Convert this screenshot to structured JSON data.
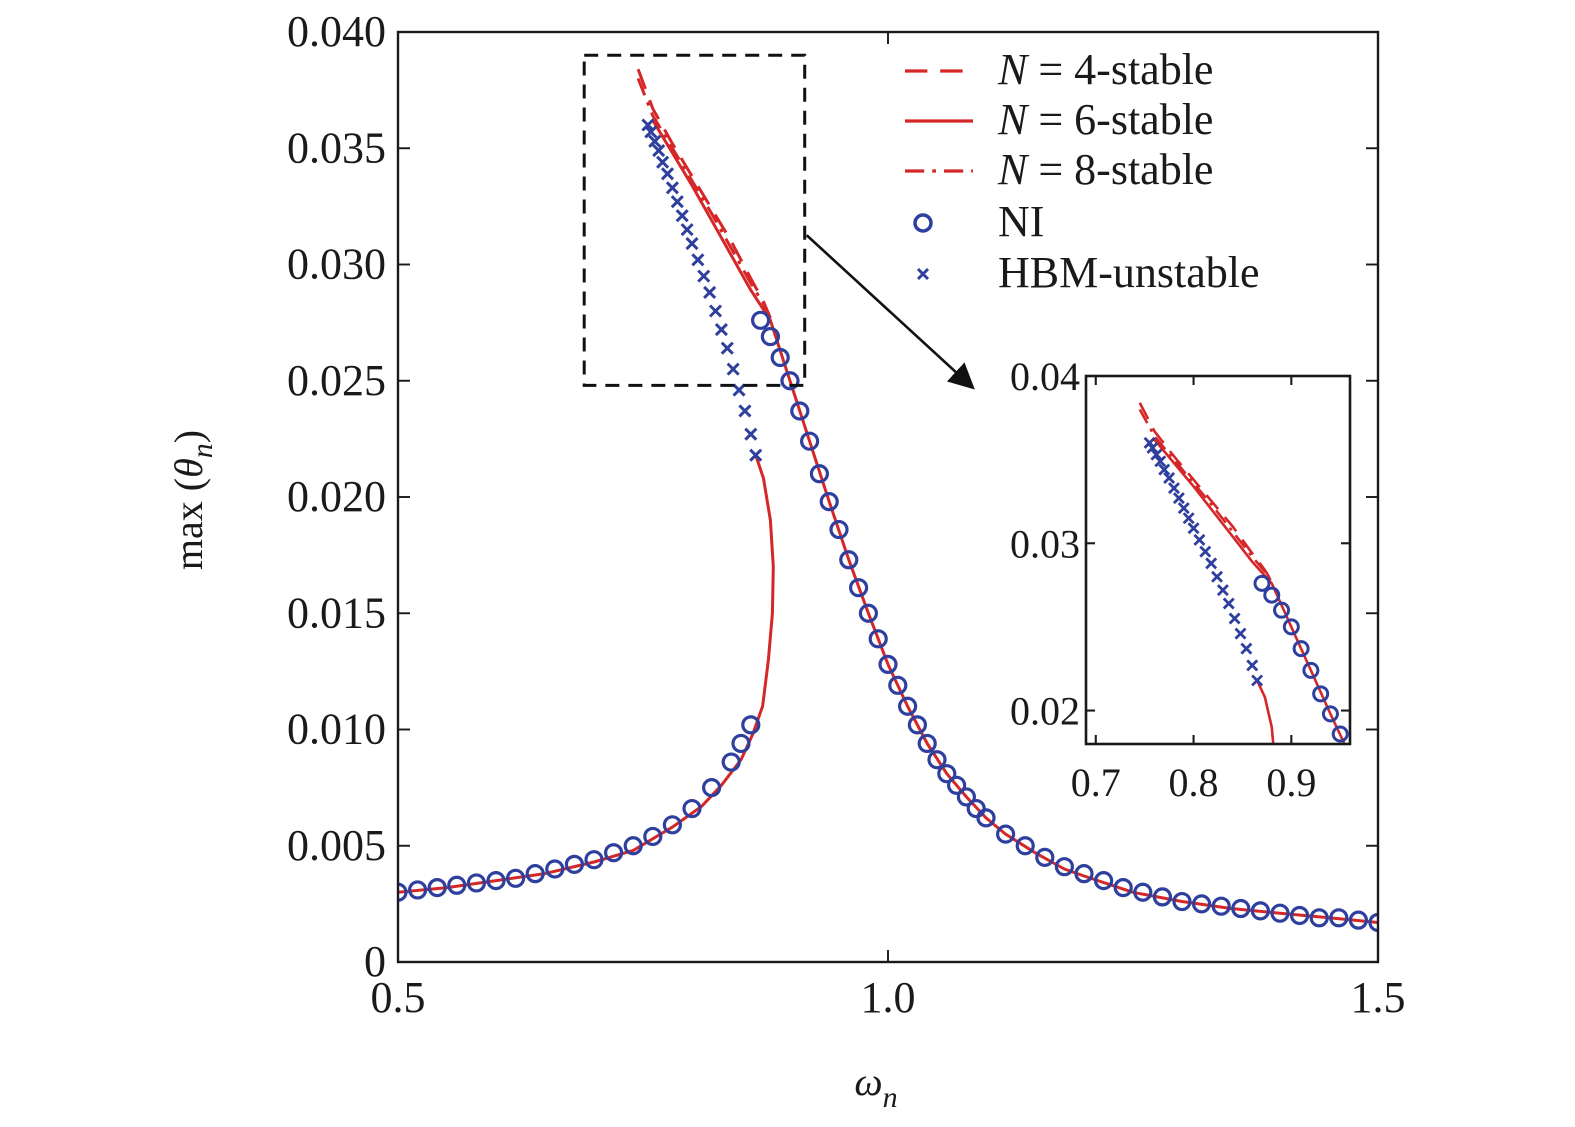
{
  "chart_data": [
    {
      "type": "line",
      "xlabel": "ω",
      "xlabel_sub": "n",
      "ylabel_prefix": "max (",
      "ylabel_symbol": "θ",
      "ylabel_sub": "n",
      "ylabel_suffix": ")",
      "xlim": [
        0.5,
        1.5
      ],
      "ylim": [
        0,
        0.04
      ],
      "x_ticks": [
        0.5,
        1.0,
        1.5
      ],
      "x_tick_labels": [
        "0.5",
        "1.0",
        "1.5"
      ],
      "y_ticks": [
        0,
        0.005,
        0.01,
        0.015,
        0.02,
        0.025,
        0.03,
        0.035,
        0.04
      ],
      "y_tick_labels": [
        "0",
        "0.005",
        "0.010",
        "0.015",
        "0.020",
        "0.025",
        "0.030",
        "0.035",
        "0.040"
      ],
      "grid": false,
      "legend_position": "top-right",
      "legend": [
        {
          "label": "= 4-stable",
          "italic_prefix": "N",
          "style": "dashed",
          "color": "#d62728"
        },
        {
          "label": "= 6-stable",
          "italic_prefix": "N",
          "style": "solid",
          "color": "#d62728"
        },
        {
          "label": "= 8-stable",
          "italic_prefix": "N",
          "style": "dashdot",
          "color": "#d62728"
        },
        {
          "label": "NI",
          "italic_prefix": "",
          "style": "circle",
          "color": "#2e3f9e"
        },
        {
          "label": "HBM-unstable",
          "italic_prefix": "",
          "style": "cross",
          "color": "#2e3f9e"
        }
      ],
      "series": [
        {
          "name": "N = 4-stable",
          "style": "dashed",
          "color": "#d62728",
          "x": [
            0.745,
            0.76,
            0.78,
            0.8,
            0.82,
            0.84,
            0.86,
            0.873,
            0.88
          ],
          "y": [
            0.0384,
            0.0367,
            0.0352,
            0.0338,
            0.0324,
            0.031,
            0.0294,
            0.0284,
            0.0277
          ]
        },
        {
          "name": "N = 6-stable upper",
          "style": "solid",
          "color": "#d62728",
          "x": [
            0.76,
            0.78,
            0.8,
            0.82,
            0.84,
            0.86,
            0.88,
            0.9,
            0.92,
            0.94,
            0.96,
            0.98,
            1.0,
            1.02,
            1.04,
            1.06,
            1.08,
            1.1,
            1.12,
            1.15,
            1.18,
            1.2,
            1.25,
            1.3,
            1.35,
            1.4,
            1.45,
            1.5
          ],
          "y": [
            0.0362,
            0.0348,
            0.0334,
            0.0319,
            0.0304,
            0.0289,
            0.0276,
            0.025,
            0.0224,
            0.0198,
            0.0173,
            0.015,
            0.0128,
            0.011,
            0.0094,
            0.0081,
            0.0071,
            0.0062,
            0.0055,
            0.0047,
            0.004,
            0.0037,
            0.003,
            0.0026,
            0.0023,
            0.0021,
            0.0019,
            0.0017
          ]
        },
        {
          "name": "N = 6-stable lower",
          "style": "solid",
          "color": "#d62728",
          "x": [
            0.5,
            0.55,
            0.6,
            0.65,
            0.7,
            0.74,
            0.78,
            0.81,
            0.83,
            0.85,
            0.862,
            0.872,
            0.878,
            0.882,
            0.883,
            0.88,
            0.873,
            0.865
          ],
          "y": [
            0.003,
            0.0032,
            0.0035,
            0.0038,
            0.0043,
            0.0048,
            0.0058,
            0.0067,
            0.0076,
            0.0087,
            0.0098,
            0.011,
            0.013,
            0.015,
            0.017,
            0.019,
            0.0208,
            0.0218
          ]
        },
        {
          "name": "N = 8-stable",
          "style": "dashdot",
          "color": "#d62728",
          "x": [
            0.745,
            0.76,
            0.78,
            0.8,
            0.82,
            0.84,
            0.86,
            0.873,
            0.88
          ],
          "y": [
            0.038,
            0.0364,
            0.035,
            0.0336,
            0.0322,
            0.0307,
            0.0292,
            0.0283,
            0.0277
          ]
        },
        {
          "name": "NI",
          "style": "circle",
          "color": "#2e3f9e",
          "x": [
            0.5,
            0.52,
            0.54,
            0.56,
            0.58,
            0.6,
            0.62,
            0.64,
            0.66,
            0.68,
            0.7,
            0.72,
            0.74,
            0.76,
            0.78,
            0.8,
            0.82,
            0.84,
            0.85,
            0.86,
            0.87,
            0.88,
            0.89,
            0.9,
            0.91,
            0.92,
            0.93,
            0.94,
            0.95,
            0.96,
            0.97,
            0.98,
            0.99,
            1.0,
            1.01,
            1.02,
            1.03,
            1.04,
            1.05,
            1.06,
            1.07,
            1.08,
            1.09,
            1.1,
            1.12,
            1.14,
            1.16,
            1.18,
            1.2,
            1.22,
            1.24,
            1.26,
            1.28,
            1.3,
            1.32,
            1.34,
            1.36,
            1.38,
            1.4,
            1.42,
            1.44,
            1.46,
            1.48,
            1.5
          ],
          "y": [
            0.003,
            0.0031,
            0.0032,
            0.0033,
            0.0034,
            0.0035,
            0.0036,
            0.0038,
            0.004,
            0.0042,
            0.0044,
            0.0047,
            0.005,
            0.0054,
            0.0059,
            0.0066,
            0.0075,
            0.0086,
            0.0094,
            0.0102,
            0.0276,
            0.0269,
            0.026,
            0.025,
            0.0237,
            0.0224,
            0.021,
            0.0198,
            0.0186,
            0.0173,
            0.0161,
            0.015,
            0.0139,
            0.0128,
            0.0119,
            0.011,
            0.0102,
            0.0094,
            0.0087,
            0.0081,
            0.0076,
            0.0071,
            0.0066,
            0.0062,
            0.0055,
            0.005,
            0.0045,
            0.0041,
            0.0038,
            0.0035,
            0.0032,
            0.003,
            0.0028,
            0.0026,
            0.0025,
            0.0024,
            0.0023,
            0.0022,
            0.0021,
            0.002,
            0.0019,
            0.0019,
            0.0018,
            0.0017
          ]
        },
        {
          "name": "HBM-unstable",
          "style": "cross",
          "color": "#2e3f9e",
          "x": [
            0.755,
            0.758,
            0.762,
            0.766,
            0.77,
            0.775,
            0.78,
            0.785,
            0.79,
            0.795,
            0.8,
            0.806,
            0.812,
            0.818,
            0.824,
            0.83,
            0.836,
            0.842,
            0.848,
            0.854,
            0.86,
            0.865
          ],
          "y": [
            0.036,
            0.0357,
            0.0353,
            0.0349,
            0.0344,
            0.0339,
            0.0333,
            0.0327,
            0.0321,
            0.0315,
            0.0309,
            0.0302,
            0.0295,
            0.0288,
            0.028,
            0.0272,
            0.0264,
            0.0255,
            0.0246,
            0.0237,
            0.0227,
            0.0218
          ]
        }
      ]
    },
    {
      "type": "line",
      "role": "inset",
      "xlim": [
        0.69,
        0.96
      ],
      "ylim": [
        0.018,
        0.04
      ],
      "x_ticks": [
        0.7,
        0.8,
        0.9
      ],
      "x_tick_labels": [
        "0.7",
        "0.8",
        "0.9"
      ],
      "y_ticks": [
        0.02,
        0.03,
        0.04
      ],
      "y_tick_labels": [
        "0.02",
        "0.03",
        "0.04"
      ],
      "grid": false,
      "zoom_box": {
        "x": [
          0.69,
          0.915
        ],
        "y": [
          0.0248,
          0.039
        ]
      }
    }
  ]
}
